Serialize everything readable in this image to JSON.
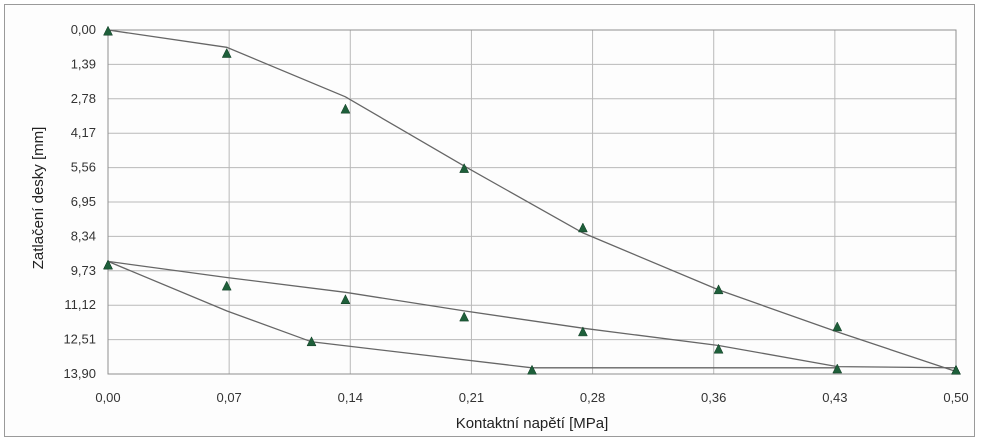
{
  "chart_data": {
    "type": "line",
    "title": "",
    "xlabel": "Kontaktní napětí [MPa]",
    "ylabel": "Zatlačení desky [mm]",
    "x_ticks": [
      "0,00",
      "0,07",
      "0,14",
      "0,21",
      "0,28",
      "0,36",
      "0,43",
      "0,50"
    ],
    "y_ticks": [
      "0,00",
      "1,39",
      "2,78",
      "4,17",
      "5,56",
      "6,95",
      "8,34",
      "9,73",
      "11,12",
      "12,51",
      "13,90"
    ],
    "xlim": [
      0,
      0.5
    ],
    "ylim": [
      0,
      13.9
    ],
    "y_inverted": true,
    "grid": true,
    "legend": "none",
    "colors": {
      "line": "#666666",
      "marker": "#1e5f3a",
      "grid": "#b9b9b9"
    },
    "series": [
      {
        "line_x": [
          0,
          0.07,
          0.14,
          0.21,
          0.28,
          0.36,
          0.43,
          0.5
        ],
        "line_y": [
          0.0,
          0.7,
          2.7,
          5.5,
          8.2,
          10.5,
          12.2,
          13.8
        ],
        "marker_x": [
          0,
          0.07,
          0.14,
          0.21,
          0.28,
          0.36,
          0.43,
          0.5
        ],
        "marker_y": [
          0.05,
          0.95,
          3.2,
          5.6,
          8.0,
          10.5,
          12.0,
          13.75
        ]
      },
      {
        "line_x": [
          0,
          0.07,
          0.14,
          0.21,
          0.28,
          0.36,
          0.43,
          0.5
        ],
        "line_y": [
          9.35,
          10.0,
          10.6,
          11.35,
          12.05,
          12.75,
          13.6,
          13.65
        ],
        "marker_x": [
          0,
          0.07,
          0.14,
          0.21,
          0.28,
          0.36,
          0.43,
          0.5
        ],
        "marker_y": [
          9.5,
          10.35,
          10.9,
          11.6,
          12.2,
          12.9,
          13.7,
          13.75
        ]
      },
      {
        "line_x": [
          0,
          0.07,
          0.12,
          0.25,
          0.43
        ],
        "line_y": [
          9.35,
          11.35,
          12.6,
          13.65,
          13.65
        ],
        "marker_x": [
          0,
          0.12,
          0.25
        ],
        "marker_y": [
          9.5,
          12.6,
          13.75
        ]
      }
    ]
  }
}
